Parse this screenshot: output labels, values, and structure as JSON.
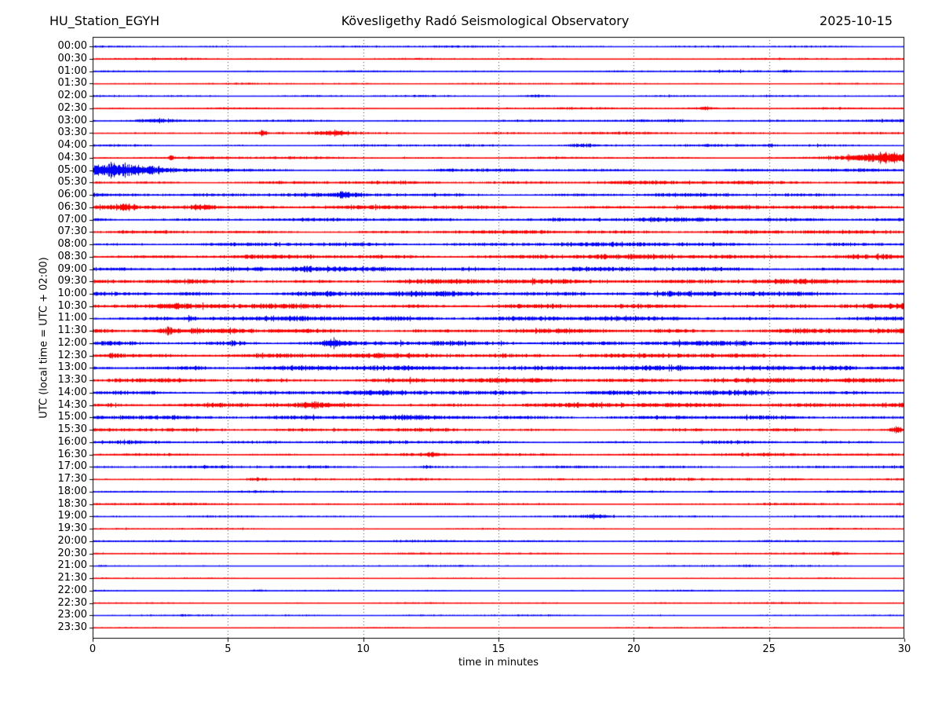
{
  "header": {
    "station": "HU_Station_EGYH",
    "observatory": "Kövesligethy Radó Seismological Observatory",
    "date": "2025-10-15"
  },
  "chart_data": {
    "type": "line",
    "variant": "helicorder-day-plot",
    "title": "HU_Station_EGYH — Kövesligethy Radó Seismological Observatory — 2025-10-15",
    "xlabel": "time in minutes",
    "ylabel": "UTC (local time = UTC + 02:00)",
    "xlim": [
      0,
      30
    ],
    "x_ticks": [
      0,
      5,
      10,
      15,
      20,
      25,
      30
    ],
    "x_gridlines": [
      5,
      10,
      15,
      20,
      25
    ],
    "grid": "vertical-dotted",
    "legend": "none",
    "minutes_per_row": 30,
    "trace_colors": {
      "hour_rows": "#0000ff",
      "half_hour_rows": "#ff0000"
    },
    "axis_color": "#000000",
    "grid_color": "#444444",
    "rows": [
      {
        "label": "00:00",
        "color": "#0000ff",
        "amp": 1.2,
        "events": []
      },
      {
        "label": "00:30",
        "color": "#ff0000",
        "amp": 1.2,
        "events": []
      },
      {
        "label": "01:00",
        "color": "#0000ff",
        "amp": 1.2,
        "events": [
          {
            "m": 25.6,
            "sl": 0.15,
            "sr": 0.15,
            "a": 1.5
          }
        ]
      },
      {
        "label": "01:30",
        "color": "#ff0000",
        "amp": 1.0,
        "events": []
      },
      {
        "label": "02:00",
        "color": "#0000ff",
        "amp": 1.2,
        "events": [
          {
            "m": 16.4,
            "sl": 0.3,
            "sr": 0.3,
            "a": 1.2
          }
        ]
      },
      {
        "label": "02:30",
        "color": "#ff0000",
        "amp": 1.3,
        "events": [
          {
            "m": 22.7,
            "sl": 0.2,
            "sr": 0.2,
            "a": 1.8
          }
        ]
      },
      {
        "label": "03:00",
        "color": "#0000ff",
        "amp": 1.5,
        "events": [
          {
            "m": 2.3,
            "sl": 0.5,
            "sr": 0.5,
            "a": 1.5
          },
          {
            "m": 21.5,
            "sl": 0.3,
            "sr": 0.3,
            "a": 1.0
          }
        ]
      },
      {
        "label": "03:30",
        "color": "#ff0000",
        "amp": 1.5,
        "events": [
          {
            "m": 6.3,
            "sl": 0.08,
            "sr": 0.08,
            "a": 2.5
          },
          {
            "m": 8.9,
            "sl": 0.5,
            "sr": 0.5,
            "a": 3.0
          }
        ]
      },
      {
        "label": "04:00",
        "color": "#0000ff",
        "amp": 1.5,
        "events": [
          {
            "m": 18.1,
            "sl": 0.4,
            "sr": 0.4,
            "a": 1.5
          },
          {
            "m": 25.0,
            "sl": 0.2,
            "sr": 0.2,
            "a": 1.0
          }
        ]
      },
      {
        "label": "04:30",
        "color": "#ff0000",
        "amp": 1.5,
        "events": [
          {
            "m": 2.9,
            "sl": 0.06,
            "sr": 0.06,
            "a": 5.0
          },
          {
            "m": 29.9,
            "sl": 1.5,
            "sr": 4.0,
            "a": 7.0
          }
        ]
      },
      {
        "label": "05:00",
        "color": "#0000ff",
        "amp": 2.0,
        "events": [
          {
            "m": 0.5,
            "sl": 3.0,
            "sr": 1.4,
            "a": 7.0
          },
          {
            "m": 13.0,
            "sl": 0.3,
            "sr": 0.3,
            "a": 1.0
          }
        ]
      },
      {
        "label": "05:30",
        "color": "#ff0000",
        "amp": 2.2,
        "events": []
      },
      {
        "label": "06:00",
        "color": "#0000ff",
        "amp": 2.5,
        "events": [
          {
            "m": 9.3,
            "sl": 0.25,
            "sr": 0.25,
            "a": 3.0
          }
        ]
      },
      {
        "label": "06:30",
        "color": "#ff0000",
        "amp": 2.8,
        "events": [
          {
            "m": 1.2,
            "sl": 0.2,
            "sr": 0.2,
            "a": 2.0
          },
          {
            "m": 4.0,
            "sl": 0.3,
            "sr": 0.3,
            "a": 3.0
          }
        ]
      },
      {
        "label": "07:00",
        "color": "#0000ff",
        "amp": 2.5,
        "events": []
      },
      {
        "label": "07:30",
        "color": "#ff0000",
        "amp": 2.2,
        "events": []
      },
      {
        "label": "08:00",
        "color": "#0000ff",
        "amp": 2.5,
        "events": []
      },
      {
        "label": "08:30",
        "color": "#ff0000",
        "amp": 3.0,
        "events": []
      },
      {
        "label": "09:00",
        "color": "#0000ff",
        "amp": 3.0,
        "events": [
          {
            "m": 7.8,
            "sl": 0.3,
            "sr": 0.3,
            "a": 1.5
          }
        ]
      },
      {
        "label": "09:30",
        "color": "#ff0000",
        "amp": 3.0,
        "events": []
      },
      {
        "label": "10:00",
        "color": "#0000ff",
        "amp": 3.2,
        "events": []
      },
      {
        "label": "10:30",
        "color": "#ff0000",
        "amp": 3.2,
        "events": [
          {
            "m": 3.2,
            "sl": 0.2,
            "sr": 0.2,
            "a": 1.5
          }
        ]
      },
      {
        "label": "11:00",
        "color": "#0000ff",
        "amp": 3.0,
        "events": [
          {
            "m": 3.6,
            "sl": 0.1,
            "sr": 0.1,
            "a": 2.5
          }
        ]
      },
      {
        "label": "11:30",
        "color": "#ff0000",
        "amp": 3.2,
        "events": [
          {
            "m": 2.8,
            "sl": 0.2,
            "sr": 0.2,
            "a": 2.0
          }
        ]
      },
      {
        "label": "12:00",
        "color": "#0000ff",
        "amp": 3.0,
        "events": [
          {
            "m": 5.2,
            "sl": 0.4,
            "sr": 0.4,
            "a": 1.5
          },
          {
            "m": 8.8,
            "sl": 0.2,
            "sr": 0.3,
            "a": 4.5
          }
        ]
      },
      {
        "label": "12:30",
        "color": "#ff0000",
        "amp": 3.0,
        "events": [
          {
            "m": 0.8,
            "sl": 0.15,
            "sr": 0.15,
            "a": 2.0
          }
        ]
      },
      {
        "label": "13:00",
        "color": "#0000ff",
        "amp": 3.2,
        "events": [
          {
            "m": 3.8,
            "sl": 0.3,
            "sr": 0.3,
            "a": 1.5
          },
          {
            "m": 27.4,
            "sl": 0.5,
            "sr": 0.5,
            "a": 2.5
          }
        ]
      },
      {
        "label": "13:30",
        "color": "#ff0000",
        "amp": 3.0,
        "events": []
      },
      {
        "label": "14:00",
        "color": "#0000ff",
        "amp": 3.0,
        "events": []
      },
      {
        "label": "14:30",
        "color": "#ff0000",
        "amp": 3.2,
        "events": [
          {
            "m": 8.1,
            "sl": 0.3,
            "sr": 0.3,
            "a": 2.5
          }
        ]
      },
      {
        "label": "15:00",
        "color": "#0000ff",
        "amp": 2.8,
        "events": []
      },
      {
        "label": "15:30",
        "color": "#ff0000",
        "amp": 2.2,
        "events": [
          {
            "m": 29.7,
            "sl": 0.2,
            "sr": 0.2,
            "a": 2.5
          }
        ]
      },
      {
        "label": "16:00",
        "color": "#0000ff",
        "amp": 2.0,
        "events": []
      },
      {
        "label": "16:30",
        "color": "#ff0000",
        "amp": 1.8,
        "events": [
          {
            "m": 12.5,
            "sl": 0.25,
            "sr": 0.25,
            "a": 2.0
          }
        ]
      },
      {
        "label": "17:00",
        "color": "#0000ff",
        "amp": 1.8,
        "events": [
          {
            "m": 12.3,
            "sl": 0.2,
            "sr": 0.2,
            "a": 1.0
          }
        ]
      },
      {
        "label": "17:30",
        "color": "#ff0000",
        "amp": 1.6,
        "events": [
          {
            "m": 6.0,
            "sl": 0.25,
            "sr": 0.25,
            "a": 2.0
          }
        ]
      },
      {
        "label": "18:00",
        "color": "#0000ff",
        "amp": 1.5,
        "events": []
      },
      {
        "label": "18:30",
        "color": "#ff0000",
        "amp": 1.4,
        "events": []
      },
      {
        "label": "19:00",
        "color": "#0000ff",
        "amp": 1.3,
        "events": [
          {
            "m": 18.6,
            "sl": 0.3,
            "sr": 0.3,
            "a": 2.0
          }
        ]
      },
      {
        "label": "19:30",
        "color": "#ff0000",
        "amp": 1.0,
        "events": []
      },
      {
        "label": "20:00",
        "color": "#0000ff",
        "amp": 1.3,
        "events": []
      },
      {
        "label": "20:30",
        "color": "#ff0000",
        "amp": 1.1,
        "events": [
          {
            "m": 27.5,
            "sl": 0.3,
            "sr": 0.3,
            "a": 1.5
          }
        ]
      },
      {
        "label": "21:00",
        "color": "#0000ff",
        "amp": 1.0,
        "events": [
          {
            "m": 24.2,
            "sl": 0.2,
            "sr": 0.2,
            "a": 1.0
          }
        ]
      },
      {
        "label": "21:30",
        "color": "#ff0000",
        "amp": 0.9,
        "events": []
      },
      {
        "label": "22:00",
        "color": "#0000ff",
        "amp": 1.0,
        "events": [
          {
            "m": 6.1,
            "sl": 0.2,
            "sr": 0.2,
            "a": 1.2
          }
        ]
      },
      {
        "label": "22:30",
        "color": "#ff0000",
        "amp": 1.0,
        "events": []
      },
      {
        "label": "23:00",
        "color": "#0000ff",
        "amp": 1.0,
        "events": []
      },
      {
        "label": "23:30",
        "color": "#ff0000",
        "amp": 0.9,
        "events": []
      }
    ]
  }
}
